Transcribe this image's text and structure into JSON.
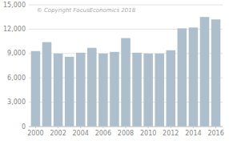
{
  "chart_data": {
    "type": "bar",
    "x": [
      2000,
      2001,
      2002,
      2003,
      2004,
      2005,
      2006,
      2007,
      2008,
      2009,
      2010,
      2011,
      2012,
      2013,
      2014,
      2015,
      2016
    ],
    "values": [
      9300,
      10400,
      9000,
      8600,
      9100,
      9700,
      9000,
      9200,
      10900,
      9100,
      9000,
      9000,
      9400,
      12100,
      12200,
      13500,
      13200
    ],
    "color": "#adbfcc",
    "xlim": [
      1999.4,
      2016.6
    ],
    "xticks": [
      2000,
      2002,
      2004,
      2006,
      2008,
      2010,
      2012,
      2014,
      2016
    ],
    "ylim": [
      0,
      15000
    ],
    "yticks": [
      0,
      {
        "value": 3000,
        "label": "3,000"
      },
      {
        "value": 6000,
        "label": "6,000"
      },
      {
        "value": 9000,
        "label": "9,000"
      },
      {
        "value": 12000,
        "label": "12,000"
      },
      {
        "value": 15000,
        "label": "15,000"
      }
    ],
    "grid": true,
    "annotations": [
      "© Copyright FocusEconomics  2018"
    ]
  }
}
